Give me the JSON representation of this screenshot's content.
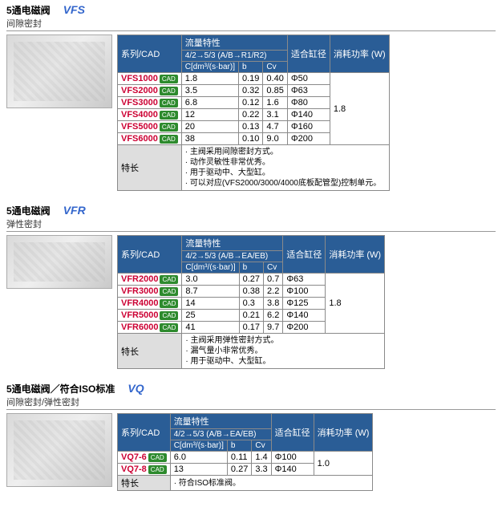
{
  "sections": [
    {
      "title_cn": "5通电磁阀",
      "title_en": "VFS",
      "subtitle": "间隙密封",
      "flow_header": "流量特性",
      "flow_sub": "4/2→5/3 (A/B→R1/R2)",
      "col_series": "系列/CAD",
      "col_c": "C[dm³/(s·bar)]",
      "col_b": "b",
      "col_cv": "Cv",
      "col_bore": "适合缸径",
      "col_power": "消耗功率 (W)",
      "rows": [
        {
          "series": "VFS1000",
          "c": "1.8",
          "b": "0.19",
          "cv": "0.40",
          "bore": "Φ50"
        },
        {
          "series": "VFS2000",
          "c": "3.5",
          "b": "0.32",
          "cv": "0.85",
          "bore": "Φ63"
        },
        {
          "series": "VFS3000",
          "c": "6.8",
          "b": "0.12",
          "cv": "1.6",
          "bore": "Φ80"
        },
        {
          "series": "VFS4000",
          "c": "12",
          "b": "0.22",
          "cv": "3.1",
          "bore": "Φ140"
        },
        {
          "series": "VFS5000",
          "c": "20",
          "b": "0.13",
          "cv": "4.7",
          "bore": "Φ160"
        },
        {
          "series": "VFS6000",
          "c": "38",
          "b": "0.10",
          "cv": "9.0",
          "bore": "Φ200"
        }
      ],
      "power_span": "1.8",
      "char_label": "特长",
      "char_items": [
        "主阀采用间隙密封方式。",
        "动作灵敏性非常优秀。",
        "用于驱动中、大型缸。",
        "可以对应(VFS2000/3000/4000底板配管型)控制单元。"
      ]
    },
    {
      "title_cn": "5通电磁阀",
      "title_en": "VFR",
      "subtitle": "弹性密封",
      "flow_header": "流量特性",
      "flow_sub": "4/2→5/3 (A/B→EA/EB)",
      "col_series": "系列/CAD",
      "col_c": "C[dm³/(s·bar)]",
      "col_b": "b",
      "col_cv": "Cv",
      "col_bore": "适合缸径",
      "col_power": "消耗功率 (W)",
      "rows": [
        {
          "series": "VFR2000",
          "c": "3.0",
          "b": "0.27",
          "cv": "0.7",
          "bore": "Φ63"
        },
        {
          "series": "VFR3000",
          "c": "8.7",
          "b": "0.38",
          "cv": "2.2",
          "bore": "Φ100"
        },
        {
          "series": "VFR4000",
          "c": "14",
          "b": "0.3",
          "cv": "3.8",
          "bore": "Φ125"
        },
        {
          "series": "VFR5000",
          "c": "25",
          "b": "0.21",
          "cv": "6.2",
          "bore": "Φ140"
        },
        {
          "series": "VFR6000",
          "c": "41",
          "b": "0.17",
          "cv": "9.7",
          "bore": "Φ200"
        }
      ],
      "power_span": "1.8",
      "char_label": "特长",
      "char_items": [
        "主阀采用弹性密封方式。",
        "漏气量小非常优秀。",
        "用于驱动中、大型缸。"
      ]
    },
    {
      "title_cn": "5通电磁阀／符合ISO标准",
      "title_en": "VQ",
      "subtitle": "间隙密封/弹性密封",
      "flow_header": "流量特性",
      "flow_sub": "4/2→5/3 (A/B→EA/EB)",
      "col_series": "系列/CAD",
      "col_c": "C[dm³/(s·bar)]",
      "col_b": "b",
      "col_cv": "Cv",
      "col_bore": "适合缸径",
      "col_power": "消耗功率 (W)",
      "rows": [
        {
          "series": "VQ7-6",
          "c": "6.0",
          "b": "0.11",
          "cv": "1.4",
          "bore": "Φ100"
        },
        {
          "series": "VQ7-8",
          "c": "13",
          "b": "0.27",
          "cv": "3.3",
          "bore": "Φ140"
        }
      ],
      "power_span": "1.0",
      "char_label": "特长",
      "char_items": [
        "符合ISO标准阀。"
      ]
    }
  ],
  "cad_label": "CAD"
}
